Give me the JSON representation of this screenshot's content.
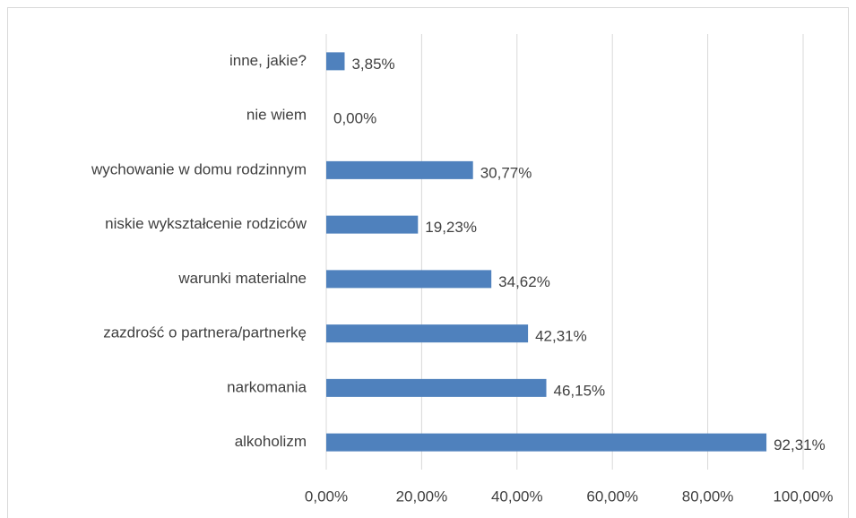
{
  "chart_data": {
    "type": "barh",
    "categories": [
      "inne, jakie?",
      "nie wiem",
      "wychowanie w domu rodzinnym",
      "niskie wykształcenie rodziców",
      "warunki materialne",
      "zazdrość o partnera/partnerkę",
      "narkomania",
      "alkoholizm"
    ],
    "values": [
      3.85,
      0,
      30.77,
      19.23,
      34.62,
      42.31,
      46.15,
      92.31
    ],
    "value_labels": [
      "3,85%",
      "0,00%",
      "30,77%",
      "19,23%",
      "34,62%",
      "42,31%",
      "46,15%",
      "92,31%"
    ],
    "color": "#4f81bd",
    "xlim": [
      0,
      100
    ],
    "xticks": [
      {
        "value": 0,
        "label": "0,00%"
      },
      {
        "value": 20,
        "label": "20,00%"
      },
      {
        "value": 40,
        "label": "40,00%"
      },
      {
        "value": 60,
        "label": "60,00%"
      },
      {
        "value": 80,
        "label": "80,00%"
      },
      {
        "value": 100,
        "label": "100,00%"
      }
    ],
    "grid": true
  }
}
